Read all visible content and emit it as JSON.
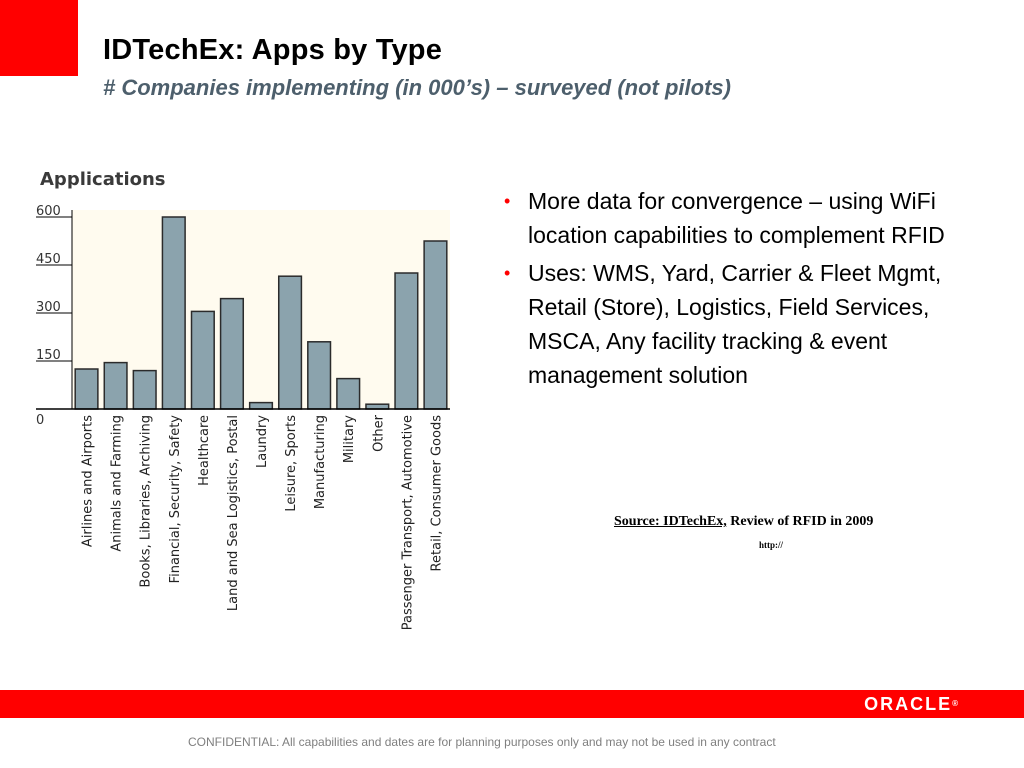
{
  "title": "IDTechEx: Apps by Type",
  "subtitle": "# Companies implementing (in 000’s) – surveyed (not pilots)",
  "bullets": [
    "More data for convergence – using WiFi location capabilities to complement RFID",
    "Uses: WMS, Yard, Carrier & Fleet Mgmt, Retail (Store), Logistics, Field Services, MSCA, Any facility tracking & event management solution"
  ],
  "source": {
    "label": "Source: IDTechEx,",
    "rest": " Review of RFID in 2009",
    "url": "http://"
  },
  "footer": {
    "logo": "ORACLE",
    "confidential": "CONFIDENTIAL:  All capabilities and dates are for planning purposes only and may not be used in any contract"
  },
  "colors": {
    "accent_red": "#ff0000",
    "subtitle": "#4d5f6c",
    "bar_fill": "#8ba3ad",
    "plot_bg": "#fffbef",
    "chart_title": "#3a3a3a"
  },
  "chart_data": {
    "type": "bar",
    "title": "Applications",
    "categories": [
      "Airlines and Airports",
      "Animals and Farming",
      "Books, Libraries, Archiving",
      "Financial, Security, Safety",
      "Healthcare",
      "Land and Sea Logistics, Postal",
      "Laundry",
      "Leisure, Sports",
      "Manufacturing",
      "Military",
      "Other",
      "Passenger Transport, Automotive",
      "Retail, Consumer Goods"
    ],
    "values": [
      125,
      145,
      120,
      600,
      305,
      345,
      20,
      415,
      210,
      95,
      15,
      425,
      525
    ],
    "yticks": [
      "0",
      "150",
      "300",
      "450",
      "600"
    ],
    "ylim": [
      0,
      600
    ],
    "xlabel": "",
    "ylabel": "",
    "grid": false
  }
}
